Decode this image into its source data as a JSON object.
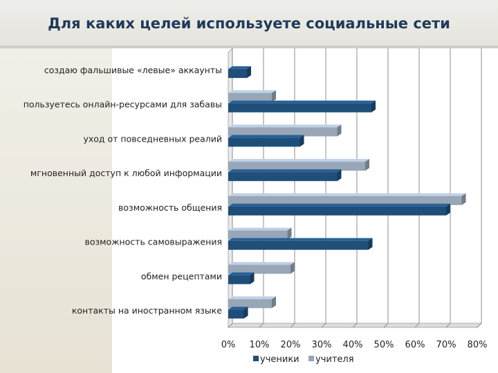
{
  "title": "Для каких целей используете социальные сети",
  "chart_data": {
    "type": "bar",
    "orientation": "horizontal",
    "title": "Для каких целей используете социальные сети",
    "xlabel": "",
    "ylabel": "",
    "xlim": [
      0,
      80
    ],
    "tick_labels": [
      "0%",
      "10%",
      "20%",
      "30%",
      "40%",
      "50%",
      "60%",
      "70%",
      "80%"
    ],
    "grid": true,
    "legend_position": "bottom",
    "categories": [
      "создаю фальшивые «левые» аккаунты",
      "пользуетесь  онлайн-ресурсами для забавы",
      "уход от повседневных реалий",
      "мгновенный доступ к любой информации",
      "возможность общения",
      "возможность самовыражения",
      "обмен рецептами",
      "контакты на иностранном языке"
    ],
    "series": [
      {
        "name": "ученики",
        "color": "#1f4e79",
        "values": [
          6,
          46,
          23,
          35,
          70,
          45,
          7,
          5
        ]
      },
      {
        "name": "учителя",
        "color": "#98a6b8",
        "values": [
          0,
          14,
          35,
          44,
          75,
          19,
          20,
          14
        ]
      }
    ]
  }
}
